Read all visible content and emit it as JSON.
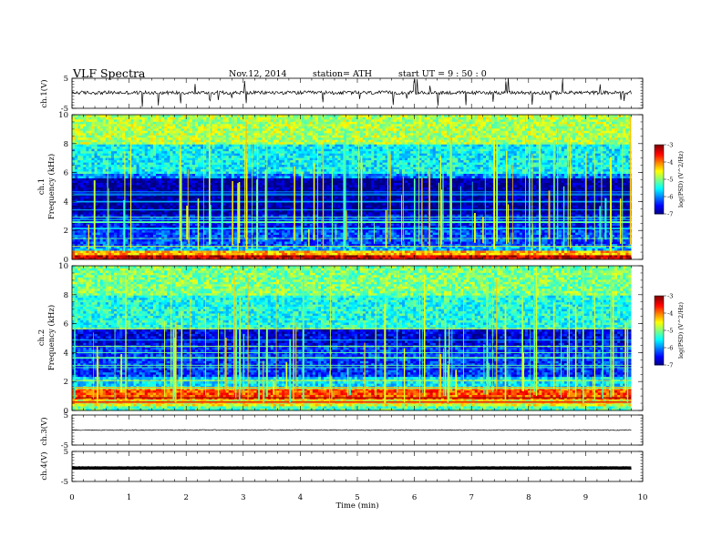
{
  "header": {
    "title": "VLF  Spectra",
    "date": "Nov.12, 2014",
    "station": "station= ATH",
    "start": "start  UT  =   9  : 50 : 0"
  },
  "chart_data": [
    {
      "type": "line",
      "name": "ch1-waveform",
      "ylabel": "ch.1(V)",
      "ylim": [
        -5,
        5
      ],
      "ytick_labels": [
        "5",
        "-5"
      ],
      "xlim": [
        0,
        10
      ],
      "data_extent": [
        0,
        9.8
      ],
      "baseline": 0.2,
      "noise": 0.6,
      "spikes": 6
    },
    {
      "type": "heatmap",
      "name": "ch1-spectrogram",
      "ylabel": "ch.1",
      "ylabel2": "Frequency  (kHz)",
      "ylim": [
        0,
        10
      ],
      "ytick_labels": [
        "0",
        "2",
        "4",
        "6",
        "8",
        "10"
      ],
      "xlim": [
        0,
        10
      ],
      "data_extent": [
        0,
        9.8
      ],
      "colorbar": {
        "label": "log(PSD) (V^2/Hz)",
        "range": [
          -7,
          -3
        ],
        "ticks": [
          "-7",
          "-6",
          "-5",
          "-4",
          "-3"
        ]
      },
      "bands_khz": [
        {
          "lo": 0.0,
          "hi": 0.3,
          "logpsd": -3.3
        },
        {
          "lo": 0.3,
          "hi": 0.6,
          "logpsd": -4.2
        },
        {
          "lo": 0.6,
          "hi": 1.0,
          "logpsd": -5.8
        },
        {
          "lo": 1.0,
          "hi": 2.0,
          "logpsd": -6.2
        },
        {
          "lo": 2.0,
          "hi": 3.2,
          "logpsd": -6.5
        },
        {
          "lo": 3.2,
          "hi": 5.6,
          "logpsd": -6.9
        },
        {
          "lo": 5.6,
          "hi": 6.0,
          "logpsd": -6.0
        },
        {
          "lo": 6.0,
          "hi": 8.0,
          "logpsd": -5.5
        },
        {
          "lo": 8.0,
          "hi": 10.0,
          "logpsd": -4.8
        }
      ]
    },
    {
      "type": "heatmap",
      "name": "ch2-spectrogram",
      "ylabel": "ch.2",
      "ylabel2": "Frequency  (kHz)",
      "ylim": [
        0,
        10
      ],
      "ytick_labels": [
        "0",
        "2",
        "4",
        "6",
        "8",
        "10"
      ],
      "xlim": [
        0,
        10
      ],
      "data_extent": [
        0,
        9.8
      ],
      "colorbar": {
        "label": "log(PSD) (V^2/Hz)",
        "range": [
          -7,
          -3
        ],
        "ticks": [
          "-7",
          "-6",
          "-5",
          "-4",
          "-3"
        ]
      },
      "bands_khz": [
        {
          "lo": 0.0,
          "hi": 0.3,
          "logpsd": -5.2
        },
        {
          "lo": 0.3,
          "hi": 0.8,
          "logpsd": -4.6
        },
        {
          "lo": 0.8,
          "hi": 1.5,
          "logpsd": -3.8
        },
        {
          "lo": 1.5,
          "hi": 2.4,
          "logpsd": -5.6
        },
        {
          "lo": 2.4,
          "hi": 4.5,
          "logpsd": -6.3
        },
        {
          "lo": 4.5,
          "hi": 5.6,
          "logpsd": -6.6
        },
        {
          "lo": 5.6,
          "hi": 8.0,
          "logpsd": -5.4
        },
        {
          "lo": 8.0,
          "hi": 10.0,
          "logpsd": -5.0
        }
      ]
    },
    {
      "type": "line",
      "name": "ch3-waveform",
      "ylabel": "ch.3(V)",
      "ylim": [
        -5,
        5
      ],
      "ytick_labels": [
        "5",
        "-5"
      ],
      "xlim": [
        0,
        10
      ],
      "data_extent": [
        0,
        9.8
      ],
      "baseline": 0.0,
      "noise": 0.15,
      "spikes": 0
    },
    {
      "type": "line",
      "name": "ch4-waveform",
      "ylabel": "ch.4(V)",
      "ylim": [
        -5,
        5
      ],
      "ytick_labels": [
        "5",
        "-5"
      ],
      "xlim": [
        0,
        10
      ],
      "data_extent": [
        0,
        9.8
      ],
      "baseline": -0.5,
      "noise": 0.05,
      "spikes": 0
    }
  ],
  "xaxis": {
    "label": "Time  (min)",
    "ticks": [
      "0",
      "1",
      "2",
      "3",
      "4",
      "5",
      "6",
      "7",
      "8",
      "9",
      "10"
    ]
  }
}
